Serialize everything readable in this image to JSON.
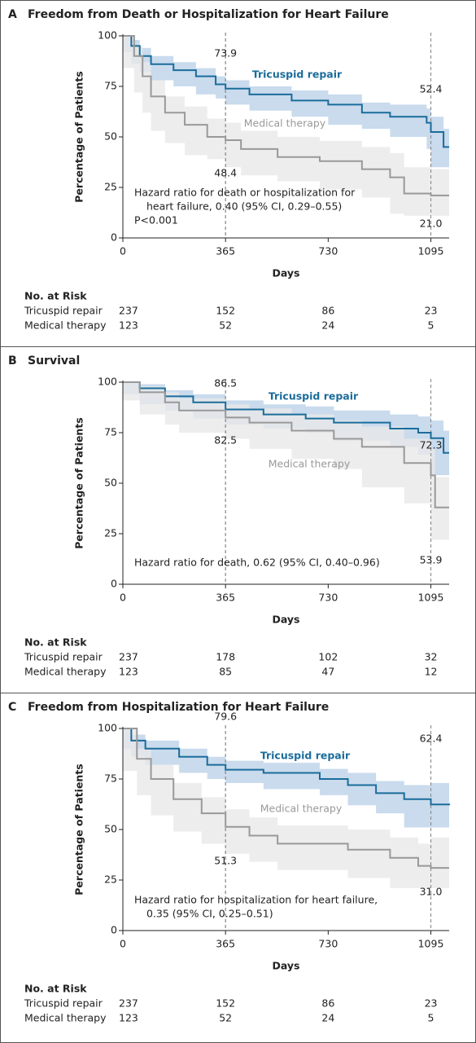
{
  "chart_data": [
    {
      "type": "line",
      "step": true,
      "panel": "A",
      "title": "Freedom from Death or Hospitalization for Heart Failure",
      "x_label": "Days",
      "y_label": "Percentage of Patients",
      "xlim": [
        0,
        1160
      ],
      "xticks": [
        0,
        365,
        730,
        1095
      ],
      "ylim": [
        0,
        100
      ],
      "yticks": [
        0,
        25,
        50,
        75,
        100
      ],
      "series": [
        {
          "name": "Tricuspid repair",
          "color": "#1b6c9b",
          "band_color": "#bcd2e8",
          "x": [
            0,
            30,
            60,
            100,
            180,
            260,
            330,
            365,
            450,
            600,
            730,
            850,
            950,
            1080,
            1095,
            1140,
            1160
          ],
          "values": [
            100,
            95,
            90,
            86,
            83,
            80,
            76,
            73.9,
            71,
            68,
            66,
            62,
            60,
            57,
            52.4,
            45,
            45
          ],
          "upper": [
            100,
            98,
            94,
            90,
            87,
            84,
            80,
            78,
            75,
            73,
            71,
            67,
            66,
            64,
            60,
            54,
            54
          ],
          "lower": [
            100,
            92,
            86,
            82,
            78,
            75,
            71,
            69,
            66,
            63,
            60,
            56,
            54,
            50,
            44,
            35,
            35
          ],
          "at_risk": [
            237,
            152,
            86,
            23
          ]
        },
        {
          "name": "Medical therapy",
          "color": "#999999",
          "band_color": "#e8e8e8",
          "x": [
            0,
            40,
            70,
            100,
            150,
            220,
            300,
            365,
            420,
            550,
            700,
            850,
            950,
            1000,
            1095,
            1160
          ],
          "values": [
            100,
            90,
            80,
            70,
            62,
            56,
            50,
            48.4,
            44,
            40,
            38,
            34,
            30,
            22,
            21,
            21
          ],
          "upper": [
            100,
            95,
            87,
            78,
            70,
            65,
            59,
            57,
            53,
            50,
            48,
            45,
            42,
            35,
            34,
            34
          ],
          "lower": [
            100,
            84,
            72,
            62,
            53,
            47,
            41,
            39,
            35,
            31,
            28,
            24,
            20,
            12,
            11,
            11
          ],
          "at_risk": [
            123,
            52,
            24,
            5
          ]
        }
      ],
      "landmarks": [
        {
          "x": 365,
          "series": 0,
          "value": 73.9
        },
        {
          "x": 365,
          "series": 1,
          "value": 48.4
        },
        {
          "x": 1095,
          "series": 0,
          "value": 52.4
        },
        {
          "x": 1095,
          "series": 1,
          "value": 21,
          "label": "21.0"
        }
      ],
      "annotation_lines": [
        "Hazard ratio for death or hospitalization for",
        "heart failure, 0.40 (95% CI, 0.29–0.55)",
        "P<0.001"
      ],
      "risk_table_title": "No. at Risk"
    },
    {
      "type": "line",
      "step": true,
      "panel": "B",
      "title": "Survival",
      "x_label": "Days",
      "y_label": "Percentage of Patients",
      "xlim": [
        0,
        1160
      ],
      "xticks": [
        0,
        365,
        730,
        1095
      ],
      "ylim": [
        0,
        100
      ],
      "yticks": [
        0,
        25,
        50,
        75,
        100
      ],
      "series": [
        {
          "name": "Tricuspid repair",
          "color": "#1b6c9b",
          "band_color": "#bcd2e8",
          "x": [
            0,
            60,
            150,
            250,
            365,
            500,
            650,
            750,
            950,
            1050,
            1095,
            1140,
            1160
          ],
          "values": [
            100,
            97,
            93,
            90,
            86.5,
            84,
            82,
            80,
            77,
            75,
            72.3,
            65,
            65
          ],
          "upper": [
            100,
            99,
            96,
            94,
            91,
            89,
            88,
            86,
            84,
            83,
            81,
            76,
            76
          ],
          "lower": [
            100,
            94,
            89,
            86,
            82,
            79,
            77,
            75,
            71,
            68,
            64,
            54,
            54
          ],
          "at_risk": [
            237,
            178,
            102,
            32
          ]
        },
        {
          "name": "Medical therapy",
          "color": "#999999",
          "band_color": "#e8e8e8",
          "x": [
            0,
            60,
            150,
            200,
            365,
            450,
            600,
            750,
            850,
            1000,
            1095,
            1110,
            1160
          ],
          "values": [
            100,
            95,
            90,
            86,
            82.5,
            80,
            76,
            72,
            68,
            60,
            53.9,
            38,
            38
          ],
          "upper": [
            100,
            98,
            95,
            92,
            89,
            87,
            84,
            81,
            78,
            72,
            67,
            53,
            53
          ],
          "lower": [
            100,
            91,
            84,
            79,
            75,
            72,
            67,
            62,
            57,
            48,
            40,
            22,
            22
          ],
          "at_risk": [
            123,
            85,
            47,
            12
          ]
        }
      ],
      "landmarks": [
        {
          "x": 365,
          "series": 0,
          "value": 86.5
        },
        {
          "x": 365,
          "series": 1,
          "value": 82.5
        },
        {
          "x": 1095,
          "series": 0,
          "value": 72.3
        },
        {
          "x": 1095,
          "series": 1,
          "value": 53.9
        }
      ],
      "annotation_lines": [
        "Hazard ratio for death, 0.62 (95% CI, 0.40–0.96)"
      ],
      "risk_table_title": "No. at Risk"
    },
    {
      "type": "line",
      "step": true,
      "panel": "C",
      "title": "Freedom from Hospitalization for Heart Failure",
      "x_label": "Days",
      "y_label": "Percentage of Patients",
      "xlim": [
        0,
        1160
      ],
      "xticks": [
        0,
        365,
        730,
        1095
      ],
      "ylim": [
        0,
        100
      ],
      "yticks": [
        0,
        25,
        50,
        75,
        100
      ],
      "series": [
        {
          "name": "Tricuspid repair",
          "color": "#1b6c9b",
          "band_color": "#bcd2e8",
          "x": [
            0,
            30,
            80,
            200,
            300,
            365,
            500,
            700,
            800,
            900,
            1000,
            1095,
            1160
          ],
          "values": [
            100,
            94,
            90,
            86,
            82,
            79.6,
            78,
            75,
            72,
            68,
            65,
            62.4,
            62
          ],
          "upper": [
            100,
            97,
            94,
            90,
            86,
            84,
            83,
            80,
            78,
            74,
            72,
            73,
            73
          ],
          "lower": [
            100,
            90,
            86,
            82,
            78,
            75,
            73,
            70,
            67,
            62,
            58,
            51,
            51
          ],
          "at_risk": [
            237,
            152,
            86,
            23
          ]
        },
        {
          "name": "Medical therapy",
          "color": "#999999",
          "band_color": "#e8e8e8",
          "x": [
            0,
            50,
            100,
            180,
            280,
            365,
            450,
            550,
            800,
            950,
            1050,
            1095,
            1160
          ],
          "values": [
            100,
            85,
            75,
            65,
            58,
            51.3,
            47,
            43,
            40,
            36,
            32,
            31,
            31
          ],
          "upper": [
            100,
            90,
            82,
            73,
            66,
            60,
            56,
            52,
            50,
            46,
            43,
            46,
            46
          ],
          "lower": [
            100,
            79,
            67,
            57,
            49,
            43,
            38,
            34,
            30,
            26,
            21,
            21,
            21
          ],
          "at_risk": [
            123,
            52,
            24,
            5
          ]
        }
      ],
      "landmarks": [
        {
          "x": 365,
          "series": 0,
          "value": 79.6
        },
        {
          "x": 365,
          "series": 1,
          "value": 51.3
        },
        {
          "x": 1095,
          "series": 0,
          "value": 62.4
        },
        {
          "x": 1095,
          "series": 1,
          "value": 31,
          "label": "31.0"
        }
      ],
      "annotation_lines": [
        "Hazard ratio for hospitalization for heart failure,",
        "0.35 (95% CI, 0.25–0.51)"
      ],
      "risk_table_title": "No. at Risk"
    }
  ]
}
